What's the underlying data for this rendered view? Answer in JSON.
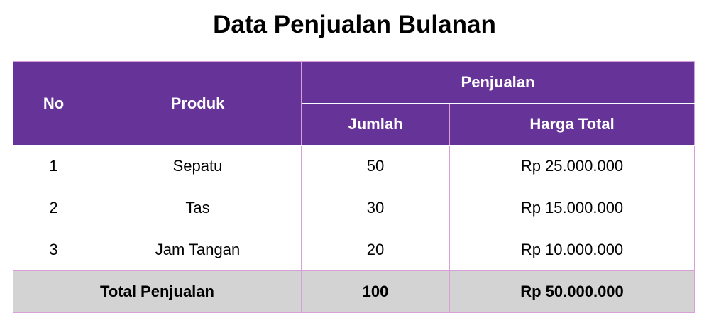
{
  "page": {
    "title": "Data Penjualan Bulanan"
  },
  "table": {
    "headers": {
      "no": "No",
      "produk": "Produk",
      "penjualan": "Penjualan",
      "jumlah": "Jumlah",
      "harga_total": "Harga Total"
    },
    "rows": [
      {
        "no": "1",
        "produk": "Sepatu",
        "jumlah": "50",
        "harga_total": "Rp 25.000.000"
      },
      {
        "no": "2",
        "produk": "Tas",
        "jumlah": "30",
        "harga_total": "Rp 15.000.000"
      },
      {
        "no": "3",
        "produk": "Jam Tangan",
        "jumlah": "20",
        "harga_total": "Rp 10.000.000"
      }
    ],
    "footer": {
      "label": "Total Penjualan",
      "jumlah": "100",
      "harga_total": "Rp 50.000.000"
    }
  },
  "colors": {
    "header_bg": "#663399",
    "header_text": "#ffffff",
    "footer_bg": "#d3d3d3",
    "border": "#d8a0d8"
  }
}
